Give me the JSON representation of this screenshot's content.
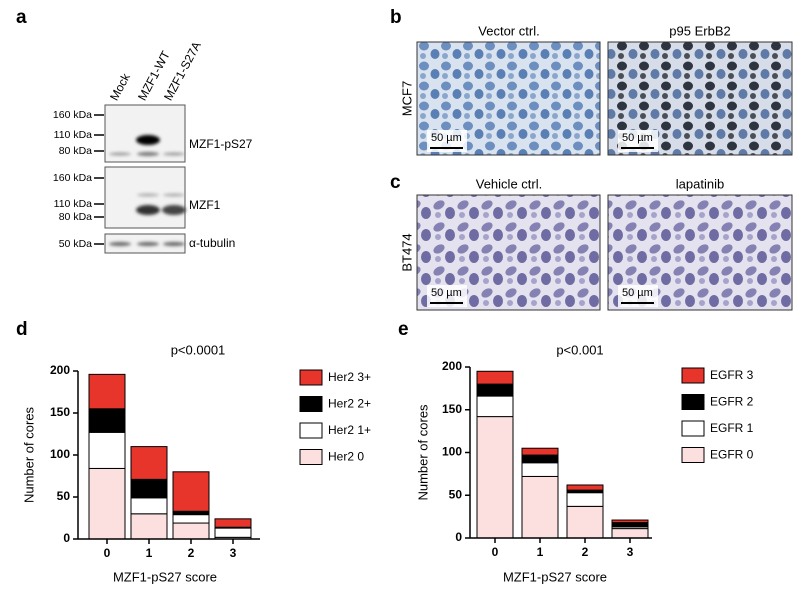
{
  "panel_labels": [
    "a",
    "b",
    "c",
    "d",
    "e"
  ],
  "blot": {
    "lanes": [
      "Mock",
      "MZF1-WT",
      "MZF1-S27A"
    ],
    "blocks": [
      {
        "markers": [
          "160 kDa",
          "110 kDa",
          "80 kDa"
        ],
        "antibody": "MZF1-pS27"
      },
      {
        "markers": [
          "160 kDa",
          "110 kDa",
          "80 kDa"
        ],
        "antibody": "MZF1"
      },
      {
        "markers": [
          "50 kDa"
        ],
        "antibody": "α-tubulin"
      }
    ]
  },
  "micrographs": [
    {
      "cell_line": "MCF7",
      "conditions": [
        "Vector ctrl.",
        "p95 ErbB2"
      ],
      "scale_bars": [
        "50 µm",
        "50 µm"
      ]
    },
    {
      "cell_line": "BT474",
      "conditions": [
        "Vehicle ctrl.",
        "lapatinib"
      ],
      "scale_bars": [
        "50 µm",
        "50 µm"
      ]
    }
  ],
  "chart_data": [
    {
      "type": "bar",
      "stacked": true,
      "annotation": "p<0.0001",
      "x_label": "MZF1-pS27  score",
      "y_label": "Number of cores",
      "categories": [
        "0",
        "1",
        "2",
        "3"
      ],
      "ylim": [
        0,
        200
      ],
      "yticks": [
        0,
        50,
        100,
        150,
        200
      ],
      "legend": "right",
      "series": [
        {
          "name": "Her2 0",
          "color": "#fbe0df",
          "values": [
            84,
            30,
            19,
            2
          ]
        },
        {
          "name": "Her2 1+",
          "color": "#ffffff",
          "values": [
            43,
            19,
            10,
            11
          ]
        },
        {
          "name": "Her2 2+",
          "color": "#000000",
          "values": [
            28,
            22,
            4,
            1
          ]
        },
        {
          "name": "Her2 3+",
          "color": "#e8352b",
          "values": [
            41,
            39,
            47,
            10
          ]
        }
      ]
    },
    {
      "type": "bar",
      "stacked": true,
      "annotation": "p<0.001",
      "x_label": "MZF1-pS27  score",
      "y_label": "Number of cores",
      "categories": [
        "0",
        "1",
        "2",
        "3"
      ],
      "ylim": [
        0,
        200
      ],
      "yticks": [
        0,
        50,
        100,
        150,
        200
      ],
      "legend": "right",
      "series": [
        {
          "name": "EGFR 0",
          "color": "#fbe0df",
          "values": [
            142,
            72,
            37,
            11
          ]
        },
        {
          "name": "EGFR 1",
          "color": "#ffffff",
          "values": [
            24,
            16,
            16,
            2
          ]
        },
        {
          "name": "EGFR 2",
          "color": "#000000",
          "values": [
            14,
            9,
            3,
            5
          ]
        },
        {
          "name": "EGFR 3",
          "color": "#e8352b",
          "values": [
            15,
            8,
            6,
            3
          ]
        }
      ]
    }
  ]
}
